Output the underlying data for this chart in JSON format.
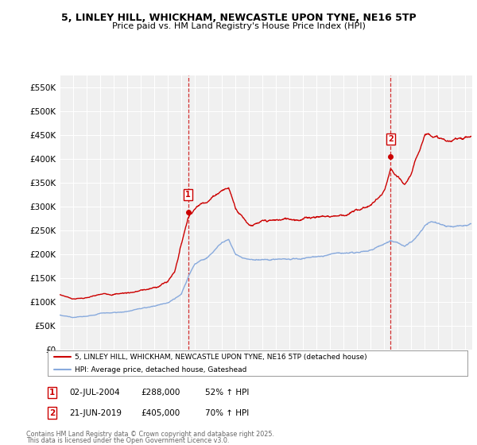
{
  "title": "5, LINLEY HILL, WHICKHAM, NEWCASTLE UPON TYNE, NE16 5TP",
  "subtitle": "Price paid vs. HM Land Registry's House Price Index (HPI)",
  "ylim": [
    0,
    575000
  ],
  "yticks": [
    0,
    50000,
    100000,
    150000,
    200000,
    250000,
    300000,
    350000,
    400000,
    450000,
    500000,
    550000
  ],
  "ytick_labels": [
    "£0",
    "£50K",
    "£100K",
    "£150K",
    "£200K",
    "£250K",
    "£300K",
    "£350K",
    "£400K",
    "£450K",
    "£500K",
    "£550K"
  ],
  "xlim_start": 1995.0,
  "xlim_end": 2025.5,
  "sale1_date": 2004.5,
  "sale1_price": 288000,
  "sale1_text": "02-JUL-2004",
  "sale1_amount": "£288,000",
  "sale1_hpi": "52% ↑ HPI",
  "sale2_date": 2019.47,
  "sale2_price": 405000,
  "sale2_text": "21-JUN-2019",
  "sale2_amount": "£405,000",
  "sale2_hpi": "70% ↑ HPI",
  "legend_label1": "5, LINLEY HILL, WHICKHAM, NEWCASTLE UPON TYNE, NE16 5TP (detached house)",
  "legend_label2": "HPI: Average price, detached house, Gateshead",
  "footer1": "Contains HM Land Registry data © Crown copyright and database right 2025.",
  "footer2": "This data is licensed under the Open Government Licence v3.0.",
  "line_color_red": "#cc0000",
  "line_color_blue": "#88aadd"
}
